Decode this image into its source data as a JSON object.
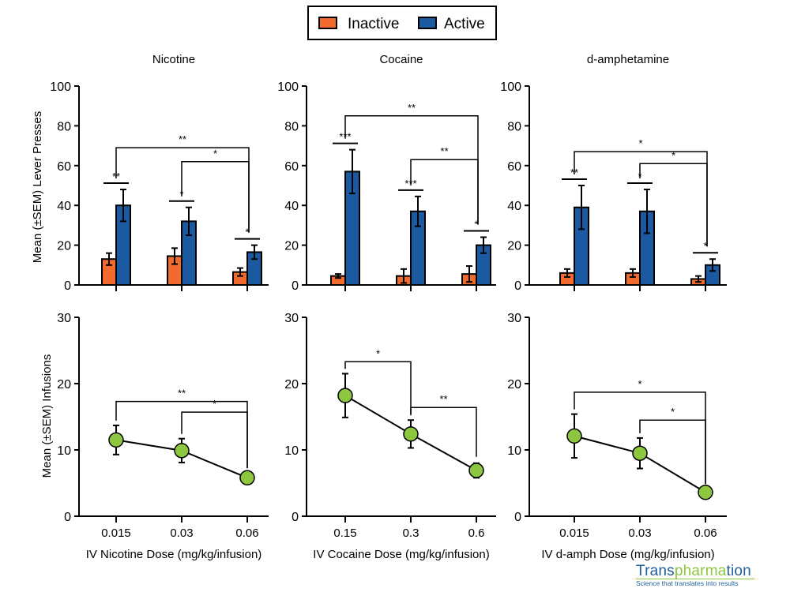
{
  "legend": {
    "items": [
      {
        "label": "Inactive",
        "color": "#f26b2e"
      },
      {
        "label": "Active",
        "color": "#1b5aa0"
      }
    ],
    "placement": "top-center"
  },
  "logo": {
    "name_part1": "Trans",
    "name_part2": "pharma",
    "name_part3": "tion",
    "tagline": "Science that translates into results"
  },
  "ylabels": {
    "top": "Mean (±SEM) Lever  Presses",
    "bottom": "Mean (±SEM) Infusions"
  },
  "chart_data": [
    {
      "type": "bar",
      "title": "Nicotine",
      "categories": [
        "0.015",
        "0.03",
        "0.06"
      ],
      "ylim": [
        0,
        100
      ],
      "yticks": [
        0,
        20,
        40,
        60,
        80,
        100
      ],
      "ylabel": "Mean (±SEM) Lever  Presses",
      "series": [
        {
          "name": "Inactive",
          "values": [
            13,
            14.5,
            6.5
          ],
          "sem": [
            3,
            4,
            2
          ]
        },
        {
          "name": "Active",
          "values": [
            40,
            32,
            16.5
          ],
          "sem": [
            8,
            7,
            3.5
          ]
        }
      ],
      "pair_sig": [
        "**",
        "*",
        "*"
      ],
      "comparisons": [
        {
          "from": 0,
          "to": 2,
          "label": "**",
          "y": 69
        },
        {
          "from": 1,
          "to": 2,
          "label": "*",
          "y": 62
        }
      ]
    },
    {
      "type": "bar",
      "title": "Cocaine",
      "categories": [
        "0.15",
        "0.3",
        "0.6"
      ],
      "ylim": [
        0,
        100
      ],
      "yticks": [
        0,
        20,
        40,
        60,
        80,
        100
      ],
      "series": [
        {
          "name": "Inactive",
          "values": [
            4.5,
            4.5,
            5.5
          ],
          "sem": [
            1,
            3.5,
            4
          ]
        },
        {
          "name": "Active",
          "values": [
            57,
            37,
            20
          ],
          "sem": [
            11,
            7.5,
            4
          ]
        }
      ],
      "pair_sig": [
        "***",
        "***",
        "*"
      ],
      "comparisons": [
        {
          "from": 0,
          "to": 2,
          "label": "**",
          "y": 85
        },
        {
          "from": 1,
          "to": 2,
          "label": "**",
          "y": 63
        }
      ]
    },
    {
      "type": "bar",
      "title": "d-amphetamine",
      "categories": [
        "0.015",
        "0.03",
        "0.06"
      ],
      "ylim": [
        0,
        100
      ],
      "yticks": [
        0,
        20,
        40,
        60,
        80,
        100
      ],
      "series": [
        {
          "name": "Inactive",
          "values": [
            6,
            6,
            3
          ],
          "sem": [
            2,
            2,
            1.5
          ]
        },
        {
          "name": "Active",
          "values": [
            39,
            37,
            10
          ],
          "sem": [
            11,
            11,
            3
          ]
        }
      ],
      "pair_sig": [
        "**",
        "*",
        "*"
      ],
      "comparisons": [
        {
          "from": 0,
          "to": 2,
          "label": "*",
          "y": 67
        },
        {
          "from": 1,
          "to": 2,
          "label": "*",
          "y": 61
        }
      ]
    },
    {
      "type": "line",
      "categories": [
        "0.015",
        "0.03",
        "0.06"
      ],
      "ylim": [
        0,
        30
      ],
      "yticks": [
        0,
        10,
        20,
        30
      ],
      "ylabel": "Mean (±SEM) Infusions",
      "xlabel": "IV Nicotine Dose (mg/kg/infusion)",
      "values": [
        11.5,
        9.9,
        5.8
      ],
      "sem": [
        2.2,
        1.8,
        0.5
      ],
      "color": "#8dc63f",
      "comparisons": [
        {
          "from": 0,
          "to": 2,
          "label": "**",
          "y": 17.3
        },
        {
          "from": 1,
          "to": 2,
          "label": "*",
          "y": 15.7
        }
      ]
    },
    {
      "type": "line",
      "categories": [
        "0.15",
        "0.3",
        "0.6"
      ],
      "ylim": [
        0,
        30
      ],
      "yticks": [
        0,
        10,
        20,
        30
      ],
      "xlabel": "IV Cocaine Dose (mg/kg/infusion)",
      "values": [
        18.2,
        12.4,
        6.9
      ],
      "sem": [
        3.3,
        2.1,
        1.1
      ],
      "color": "#8dc63f",
      "comparisons": [
        {
          "from": 0,
          "to": 1,
          "label": "*",
          "y": 23.3
        },
        {
          "from": 1,
          "to": 2,
          "label": "**",
          "y": 16.4
        }
      ]
    },
    {
      "type": "line",
      "categories": [
        "0.015",
        "0.03",
        "0.06"
      ],
      "ylim": [
        0,
        30
      ],
      "yticks": [
        0,
        10,
        20,
        30
      ],
      "xlabel": "IV d-amph Dose (mg/kg/infusion)",
      "values": [
        12.1,
        9.5,
        3.6
      ],
      "sem": [
        3.3,
        2.3,
        0.3
      ],
      "color": "#8dc63f",
      "comparisons": [
        {
          "from": 0,
          "to": 2,
          "label": "*",
          "y": 18.7
        },
        {
          "from": 1,
          "to": 2,
          "label": "*",
          "y": 14.5
        }
      ]
    }
  ]
}
